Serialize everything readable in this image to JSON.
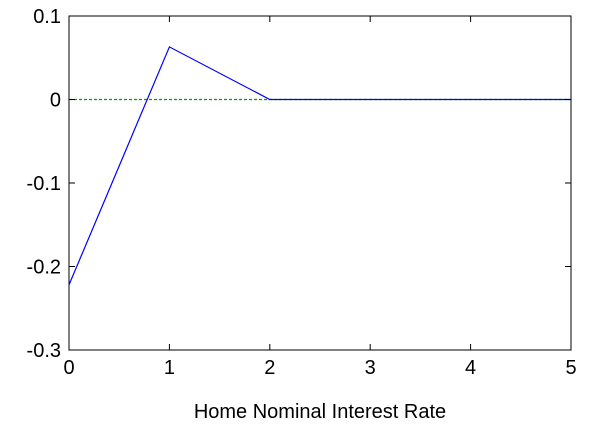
{
  "chart_data": {
    "type": "line",
    "xlabel": "Home Nominal Interest Rate",
    "ylabel": "",
    "xlim": [
      0,
      5
    ],
    "ylim": [
      -0.3,
      0.1
    ],
    "xticks": [
      0,
      1,
      2,
      3,
      4,
      5
    ],
    "yticks": [
      0.1,
      0,
      -0.1,
      -0.2,
      -0.3
    ],
    "xtick_labels": [
      "0",
      "1",
      "2",
      "3",
      "4",
      "5"
    ],
    "ytick_labels": [
      "0.1",
      "0",
      "-0.1",
      "-0.2",
      "-0.3"
    ],
    "grid": false,
    "series": [
      {
        "x": [
          0,
          1,
          2,
          3,
          4,
          5
        ],
        "values": [
          -0.222,
          0.063,
          0.0,
          0.0,
          0.0,
          0.0
        ],
        "color": "#0000ff",
        "style": "solid"
      },
      {
        "x": [
          0,
          5
        ],
        "values": [
          0,
          0
        ],
        "color": "#00a000",
        "style": "dashed"
      }
    ]
  }
}
